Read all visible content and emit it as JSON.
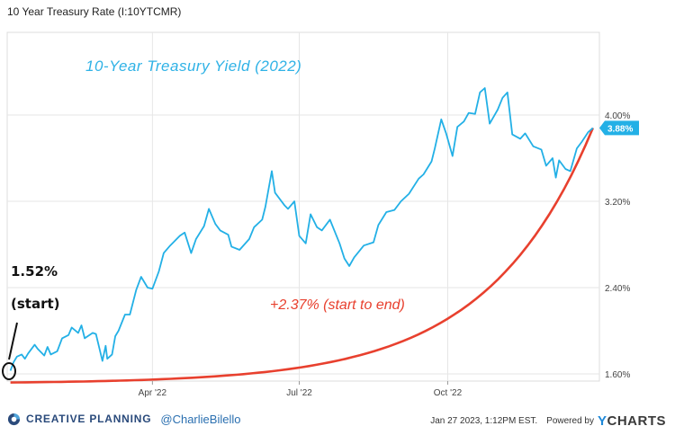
{
  "header": {
    "title": "10 Year Treasury Rate (I:10YTCMR)"
  },
  "chart_data": {
    "type": "line",
    "title": "10-Year Treasury Yield (2022)",
    "x_tick_labels": [
      "Apr '22",
      "Jul '22",
      "Oct '22"
    ],
    "y_tick_labels": [
      "1.60%",
      "2.40%",
      "3.20%",
      "4.00%"
    ],
    "y_ticks": [
      1.6,
      2.4,
      3.2,
      4.0
    ],
    "ylim": [
      1.6,
      4.4
    ],
    "grid": true,
    "series": [
      {
        "color": "#23b0e6",
        "x": [
          "2022-01-03",
          "2022-01-05",
          "2022-01-07",
          "2022-01-10",
          "2022-01-12",
          "2022-01-14",
          "2022-01-18",
          "2022-01-20",
          "2022-01-24",
          "2022-01-26",
          "2022-01-28",
          "2022-02-01",
          "2022-02-04",
          "2022-02-08",
          "2022-02-10",
          "2022-02-14",
          "2022-02-16",
          "2022-02-18",
          "2022-02-23",
          "2022-02-25",
          "2022-03-01",
          "2022-03-03",
          "2022-03-04",
          "2022-03-07",
          "2022-03-09",
          "2022-03-11",
          "2022-03-15",
          "2022-03-18",
          "2022-03-22",
          "2022-03-25",
          "2022-03-29",
          "2022-04-01",
          "2022-04-05",
          "2022-04-08",
          "2022-04-12",
          "2022-04-18",
          "2022-04-21",
          "2022-04-25",
          "2022-04-28",
          "2022-05-03",
          "2022-05-06",
          "2022-05-10",
          "2022-05-13",
          "2022-05-18",
          "2022-05-20",
          "2022-05-25",
          "2022-05-31",
          "2022-06-03",
          "2022-06-08",
          "2022-06-10",
          "2022-06-14",
          "2022-06-16",
          "2022-06-22",
          "2022-06-24",
          "2022-06-28",
          "2022-07-01",
          "2022-07-05",
          "2022-07-08",
          "2022-07-12",
          "2022-07-15",
          "2022-07-20",
          "2022-07-26",
          "2022-07-29",
          "2022-08-01",
          "2022-08-04",
          "2022-08-10",
          "2022-08-16",
          "2022-08-19",
          "2022-08-24",
          "2022-08-29",
          "2022-09-02",
          "2022-09-07",
          "2022-09-13",
          "2022-09-16",
          "2022-09-21",
          "2022-09-23",
          "2022-09-27",
          "2022-09-30",
          "2022-10-04",
          "2022-10-07",
          "2022-10-11",
          "2022-10-14",
          "2022-10-18",
          "2022-10-21",
          "2022-10-24",
          "2022-10-27",
          "2022-11-01",
          "2022-11-04",
          "2022-11-07",
          "2022-11-10",
          "2022-11-15",
          "2022-11-18",
          "2022-11-23",
          "2022-11-28",
          "2022-12-01",
          "2022-12-05",
          "2022-12-07",
          "2022-12-09",
          "2022-12-13",
          "2022-12-16",
          "2022-12-20",
          "2022-12-23",
          "2022-12-27",
          "2022-12-30"
        ],
        "y": [
          1.63,
          1.71,
          1.76,
          1.78,
          1.74,
          1.79,
          1.87,
          1.83,
          1.77,
          1.85,
          1.78,
          1.81,
          1.93,
          1.96,
          2.03,
          1.98,
          2.05,
          1.93,
          1.98,
          1.97,
          1.72,
          1.86,
          1.74,
          1.78,
          1.95,
          2.0,
          2.15,
          2.15,
          2.38,
          2.5,
          2.4,
          2.39,
          2.55,
          2.72,
          2.79,
          2.88,
          2.91,
          2.72,
          2.85,
          2.97,
          3.13,
          2.99,
          2.93,
          2.89,
          2.78,
          2.75,
          2.85,
          2.96,
          3.03,
          3.15,
          3.48,
          3.28,
          3.16,
          3.13,
          3.2,
          2.88,
          2.81,
          3.08,
          2.96,
          2.93,
          3.03,
          2.81,
          2.67,
          2.6,
          2.68,
          2.79,
          2.82,
          2.98,
          3.1,
          3.12,
          3.2,
          3.27,
          3.41,
          3.45,
          3.57,
          3.69,
          3.96,
          3.83,
          3.62,
          3.89,
          3.94,
          4.02,
          4.01,
          4.21,
          4.25,
          3.92,
          4.05,
          4.16,
          4.21,
          3.82,
          3.78,
          3.83,
          3.71,
          3.68,
          3.53,
          3.6,
          3.42,
          3.58,
          3.5,
          3.48,
          3.69,
          3.75,
          3.84,
          3.88
        ]
      },
      {
        "color": "#e8402e",
        "x": [
          "2022-01-03",
          "2022-12-30"
        ],
        "y": [
          1.52,
          3.88
        ]
      }
    ],
    "annotations": {
      "last_value_label": "3.88%",
      "start_value": "1.52%",
      "start_label": "(start)",
      "change_label": "+2.37% (start to end)"
    }
  },
  "footer": {
    "brand": "CREATIVE PLANNING",
    "handle": "@CharlieBilello",
    "timestamp": "Jan 27 2023, 1:12PM EST.",
    "powered_by": "Powered by",
    "ycharts_y": "Y",
    "ycharts_rest": "CHARTS"
  },
  "colors": {
    "brand_blue": "#2a4a7b",
    "line_blue": "#23b0e6",
    "trend_red": "#e8402e",
    "ycharts_blue": "#1e88d8"
  }
}
